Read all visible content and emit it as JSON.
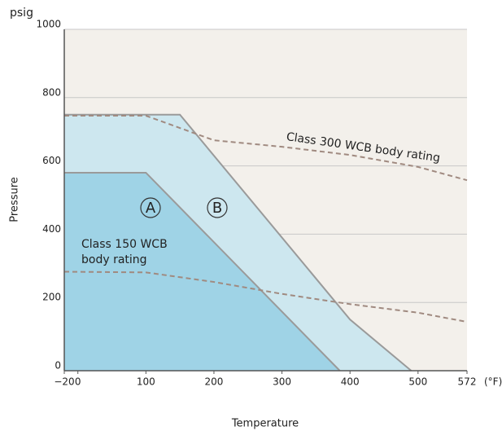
{
  "chart_data": {
    "type": "area",
    "y_label": "Pressure",
    "y_unit": "psig",
    "x_label": "Temperature",
    "x_unit": "(°F)",
    "xlim": [
      -20,
      572
    ],
    "ylim": [
      0,
      1000
    ],
    "xticks": [
      {
        "value": -20,
        "label": "−20"
      },
      0,
      100,
      200,
      300,
      400,
      500,
      572
    ],
    "yticks": [
      0,
      200,
      400,
      600,
      800,
      1000
    ],
    "grid": true,
    "series": [
      {
        "name": "B",
        "style": "area",
        "color": "#cde7ef",
        "x": [
          -20,
          150,
          400,
          490
        ],
        "values": [
          750,
          750,
          150,
          0
        ]
      },
      {
        "name": "A",
        "style": "area",
        "color": "#9fd3e6",
        "x": [
          -20,
          100,
          385
        ],
        "values": [
          580,
          580,
          0
        ]
      },
      {
        "name": "Class 300 WCB body rating",
        "style": "dashed",
        "color": "#a08a80",
        "x": [
          -20,
          100,
          200,
          300,
          400,
          500,
          572
        ],
        "values": [
          747,
          747,
          675,
          656,
          632,
          597,
          558
        ]
      },
      {
        "name": "Class 150 WCB body rating",
        "style": "dashed",
        "color": "#a08a80",
        "x": [
          -20,
          100,
          200,
          300,
          400,
          500,
          572
        ],
        "values": [
          290,
          288,
          260,
          225,
          195,
          170,
          143
        ]
      }
    ]
  }
}
